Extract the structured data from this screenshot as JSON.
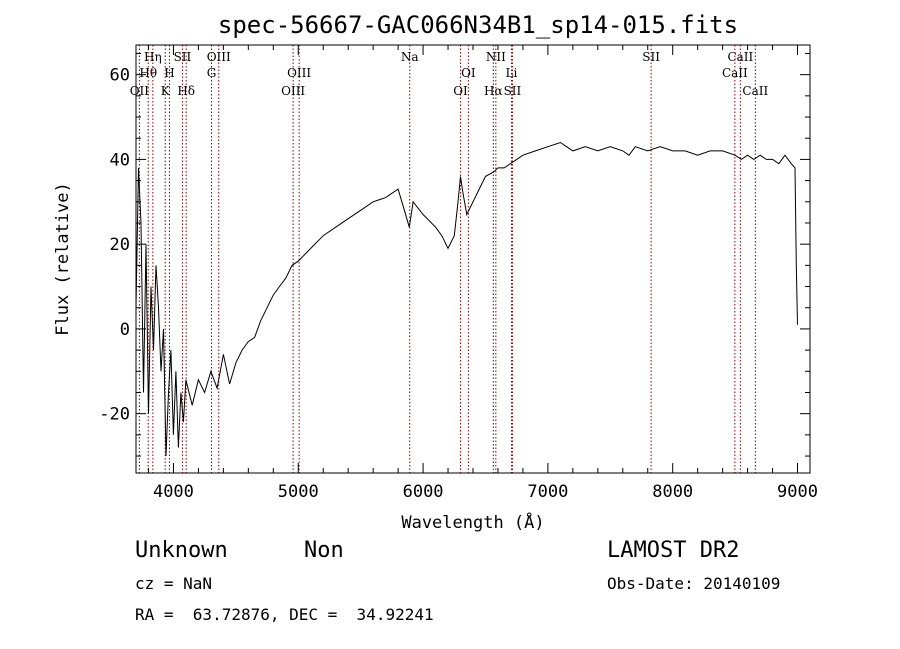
{
  "chart_data": {
    "type": "line",
    "title": "spec-56667-GAC066N34B1_sp14-015.fits",
    "xlabel": "Wavelength (Å)",
    "ylabel": "Flux (relative)",
    "xlim": [
      3700,
      9100
    ],
    "ylim": [
      -34,
      67
    ],
    "xticks": [
      4000,
      5000,
      6000,
      7000,
      8000,
      9000
    ],
    "yticks": [
      -20,
      0,
      20,
      40,
      60
    ],
    "grid": false,
    "line_color": "#000000",
    "marker_color": "#8b0000",
    "series": [
      {
        "x": [
          3700,
          3720,
          3740,
          3760,
          3780,
          3800,
          3820,
          3840,
          3860,
          3880,
          3900,
          3920,
          3940,
          3960,
          3980,
          4000,
          4020,
          4040,
          4060,
          4080,
          4100,
          4150,
          4200,
          4250,
          4300,
          4350,
          4400,
          4450,
          4500,
          4550,
          4600,
          4650,
          4700,
          4750,
          4800,
          4850,
          4900,
          4950,
          5000,
          5100,
          5200,
          5300,
          5400,
          5500,
          5600,
          5700,
          5800,
          5850,
          5890,
          5920,
          6000,
          6100,
          6150,
          6200,
          6250,
          6280,
          6300,
          6320,
          6350,
          6400,
          6450,
          6500,
          6563,
          6600,
          6650,
          6700,
          6750,
          6800,
          6900,
          7000,
          7100,
          7150,
          7200,
          7300,
          7400,
          7500,
          7600,
          7650,
          7700,
          7800,
          7900,
          8000,
          8100,
          8200,
          8300,
          8400,
          8500,
          8550,
          8600,
          8650,
          8700,
          8750,
          8800,
          8850,
          8900,
          8950,
          8980,
          8990,
          9000
        ],
        "y": [
          5,
          38,
          25,
          -15,
          20,
          -20,
          10,
          -5,
          15,
          5,
          -10,
          0,
          -30,
          -15,
          -5,
          -25,
          -10,
          -28,
          -15,
          -22,
          -12,
          -18,
          -12,
          -15,
          -10,
          -14,
          -6,
          -13,
          -8,
          -5,
          -3,
          -2,
          2,
          5,
          8,
          10,
          12,
          15,
          16,
          19,
          22,
          24,
          26,
          28,
          30,
          31,
          33,
          28,
          24,
          30,
          27,
          24,
          22,
          19,
          22,
          30,
          36,
          32,
          27,
          30,
          33,
          36,
          37,
          38,
          38,
          39,
          40,
          41,
          42,
          43,
          44,
          43,
          42,
          43,
          42,
          43,
          42,
          41,
          43,
          42,
          43,
          42,
          42,
          41,
          42,
          42,
          41,
          40,
          41,
          40,
          41,
          40,
          40,
          39,
          41,
          39,
          38,
          15,
          1
        ]
      }
    ],
    "spectral_lines": [
      {
        "label": "Hη",
        "x": 3835,
        "row": 1
      },
      {
        "label": "Hθ",
        "x": 3798,
        "row": 2
      },
      {
        "label": "OII",
        "x": 3727,
        "row": 3
      },
      {
        "label": "H",
        "x": 3968,
        "row": 2
      },
      {
        "label": "K",
        "x": 3934,
        "row": 3
      },
      {
        "label": "SII",
        "x": 4072,
        "row": 1
      },
      {
        "label": "Hδ",
        "x": 4102,
        "row": 3
      },
      {
        "label": "OIII",
        "x": 4363,
        "row": 1
      },
      {
        "label": "G",
        "x": 4305,
        "row": 2
      },
      {
        "label": "OIII",
        "x": 5007,
        "row": 2
      },
      {
        "label": "OIII",
        "x": 4959,
        "row": 3
      },
      {
        "label": "Na",
        "x": 5893,
        "row": 1
      },
      {
        "label": "OI",
        "x": 6363,
        "row": 2
      },
      {
        "label": "OI",
        "x": 6300,
        "row": 3
      },
      {
        "label": "NII",
        "x": 6583,
        "row": 1
      },
      {
        "label": "Li",
        "x": 6708,
        "row": 2
      },
      {
        "label": "Hα",
        "x": 6563,
        "row": 3
      },
      {
        "label": "SII",
        "x": 6716,
        "row": 3
      },
      {
        "label": "SII",
        "x": 7827,
        "row": 1
      },
      {
        "label": "CaII",
        "x": 8542,
        "row": 1
      },
      {
        "label": "CaII",
        "x": 8498,
        "row": 2
      },
      {
        "label": "CaII",
        "x": 8662,
        "row": 3
      }
    ]
  },
  "info": {
    "object_class": "Unknown",
    "object_subclass": "Non",
    "survey": "LAMOST DR2",
    "redshift": "cz = NaN",
    "obs_date": "Obs-Date: 20140109",
    "coords": "RA =  63.72876, DEC =  34.92241"
  }
}
